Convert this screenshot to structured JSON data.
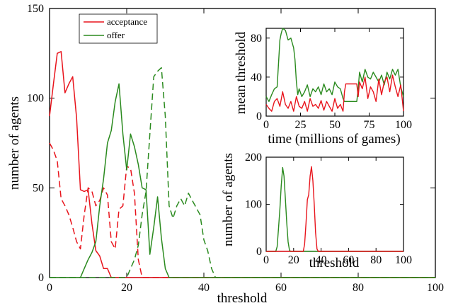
{
  "colors": {
    "acceptance": "#e8141c",
    "offer": "#2a8a1e",
    "axis": "#000000",
    "background": "#ffffff"
  },
  "chart_data": [
    {
      "id": "main",
      "type": "line",
      "xlabel": "threshold",
      "ylabel": "number of agents",
      "xlim": [
        0,
        100
      ],
      "ylim": [
        0,
        150
      ],
      "xticks": [
        0,
        20,
        40,
        60,
        80,
        100
      ],
      "yticks": [
        0,
        50,
        100,
        150
      ],
      "legend": {
        "position": "top-left",
        "entries": [
          "acceptance",
          "offer"
        ]
      },
      "series": [
        {
          "name": "acceptance",
          "color": "#e8141c",
          "dash": false,
          "x": [
            0,
            1,
            2,
            3,
            4,
            5,
            6,
            7,
            8,
            9,
            10,
            11,
            12,
            13,
            14,
            15,
            16,
            17,
            18,
            19,
            20,
            100
          ],
          "y": [
            90,
            108,
            125,
            126,
            103,
            108,
            112,
            89,
            49,
            48,
            49,
            30,
            15,
            12,
            5,
            5,
            0,
            0,
            0,
            0,
            0,
            0
          ]
        },
        {
          "name": "acceptance",
          "color": "#e8141c",
          "dash": true,
          "x": [
            0,
            1,
            2,
            3,
            4,
            5,
            6,
            7,
            8,
            9,
            10,
            11,
            12,
            13,
            14,
            15,
            16,
            17,
            18,
            19,
            20,
            21,
            22,
            23,
            24,
            25,
            100
          ],
          "y": [
            75,
            71,
            65,
            44,
            40,
            35,
            28,
            20,
            16,
            35,
            50,
            48,
            40,
            43,
            50,
            46,
            20,
            16,
            38,
            40,
            62,
            61,
            47,
            10,
            0,
            0,
            0
          ]
        },
        {
          "name": "offer",
          "color": "#2a8a1e",
          "dash": false,
          "x": [
            0,
            8,
            9,
            10,
            11,
            12,
            13,
            14,
            15,
            16,
            17,
            18,
            19,
            20,
            21,
            22,
            23,
            24,
            25,
            26,
            27,
            28,
            29,
            30,
            31,
            100
          ],
          "y": [
            0,
            0,
            5,
            10,
            14,
            20,
            40,
            55,
            75,
            82,
            98,
            108,
            80,
            60,
            80,
            73,
            63,
            50,
            49,
            13,
            28,
            45,
            22,
            5,
            0,
            0
          ]
        },
        {
          "name": "offer",
          "color": "#2a8a1e",
          "dash": true,
          "x": [
            0,
            20,
            21,
            22,
            23,
            24,
            25,
            26,
            27,
            28,
            29,
            30,
            31,
            32,
            33,
            34,
            35,
            36,
            37,
            38,
            39,
            40,
            41,
            42,
            43,
            44,
            100
          ],
          "y": [
            0,
            0,
            5,
            10,
            18,
            35,
            48,
            80,
            112,
            115,
            117,
            90,
            40,
            33,
            40,
            44,
            40,
            47,
            43,
            39,
            35,
            21,
            15,
            5,
            0,
            0,
            0
          ]
        }
      ]
    },
    {
      "id": "inset-top",
      "type": "line",
      "xlabel": "time (millions of games)",
      "ylabel": "mean threshold",
      "xlim": [
        0,
        100
      ],
      "ylim": [
        0,
        90
      ],
      "xticks": [
        0,
        25,
        50,
        75,
        100
      ],
      "yticks": [
        0,
        40,
        80
      ],
      "series": [
        {
          "name": "offer",
          "color": "#2a8a1e",
          "x": [
            0,
            2,
            4,
            6,
            8,
            10,
            11,
            12,
            14,
            16,
            18,
            20,
            21,
            22,
            23,
            24,
            26,
            28,
            30,
            32,
            34,
            36,
            38,
            40,
            42,
            44,
            46,
            48,
            50,
            52,
            54,
            56,
            57,
            58,
            60,
            62,
            64,
            66,
            67,
            68,
            70,
            72,
            74,
            76,
            78,
            80,
            82,
            84,
            86,
            88,
            90,
            92,
            94,
            96,
            98,
            100
          ],
          "y": [
            20,
            15,
            22,
            28,
            30,
            78,
            85,
            90,
            88,
            78,
            80,
            70,
            58,
            35,
            22,
            28,
            20,
            25,
            32,
            20,
            28,
            25,
            30,
            22,
            33,
            25,
            28,
            22,
            35,
            30,
            28,
            18,
            15,
            15,
            15,
            15,
            15,
            15,
            28,
            45,
            35,
            48,
            40,
            38,
            45,
            40,
            35,
            42,
            32,
            45,
            38,
            48,
            42,
            48,
            30,
            20
          ]
        },
        {
          "name": "acceptance",
          "color": "#e8141c",
          "x": [
            0,
            2,
            4,
            6,
            8,
            10,
            12,
            14,
            16,
            18,
            20,
            22,
            24,
            26,
            28,
            30,
            32,
            34,
            36,
            38,
            40,
            42,
            44,
            46,
            48,
            50,
            52,
            54,
            56,
            57,
            58,
            60,
            62,
            64,
            66,
            67,
            68,
            70,
            72,
            74,
            76,
            78,
            80,
            82,
            84,
            86,
            88,
            90,
            92,
            94,
            96,
            98,
            100
          ],
          "y": [
            12,
            8,
            5,
            15,
            18,
            10,
            25,
            12,
            8,
            15,
            5,
            20,
            10,
            8,
            15,
            5,
            18,
            10,
            12,
            8,
            16,
            6,
            15,
            10,
            5,
            18,
            8,
            12,
            5,
            25,
            33,
            33,
            33,
            33,
            33,
            20,
            35,
            28,
            40,
            18,
            30,
            25,
            15,
            38,
            22,
            35,
            40,
            25,
            42,
            30,
            20,
            32,
            5
          ]
        }
      ]
    },
    {
      "id": "inset-bottom",
      "type": "line",
      "xlabel": "threshold",
      "ylabel": "number of agents",
      "xlim": [
        0,
        100
      ],
      "ylim": [
        0,
        200
      ],
      "xticks": [
        0,
        20,
        40,
        60,
        80,
        100
      ],
      "yticks": [
        0,
        100,
        200
      ],
      "series": [
        {
          "name": "offer",
          "color": "#2a8a1e",
          "x": [
            0,
            7,
            8,
            9,
            10,
            11,
            12,
            13,
            14,
            15,
            16,
            17,
            18,
            100
          ],
          "y": [
            0,
            0,
            10,
            50,
            90,
            140,
            178,
            160,
            110,
            60,
            20,
            2,
            0,
            0
          ]
        },
        {
          "name": "acceptance",
          "color": "#e8141c",
          "x": [
            0,
            27,
            28,
            29,
            30,
            31,
            32,
            33,
            34,
            35,
            36,
            37,
            38,
            100
          ],
          "y": [
            0,
            0,
            15,
            60,
            110,
            120,
            160,
            180,
            150,
            100,
            40,
            5,
            0,
            0
          ]
        }
      ]
    }
  ]
}
